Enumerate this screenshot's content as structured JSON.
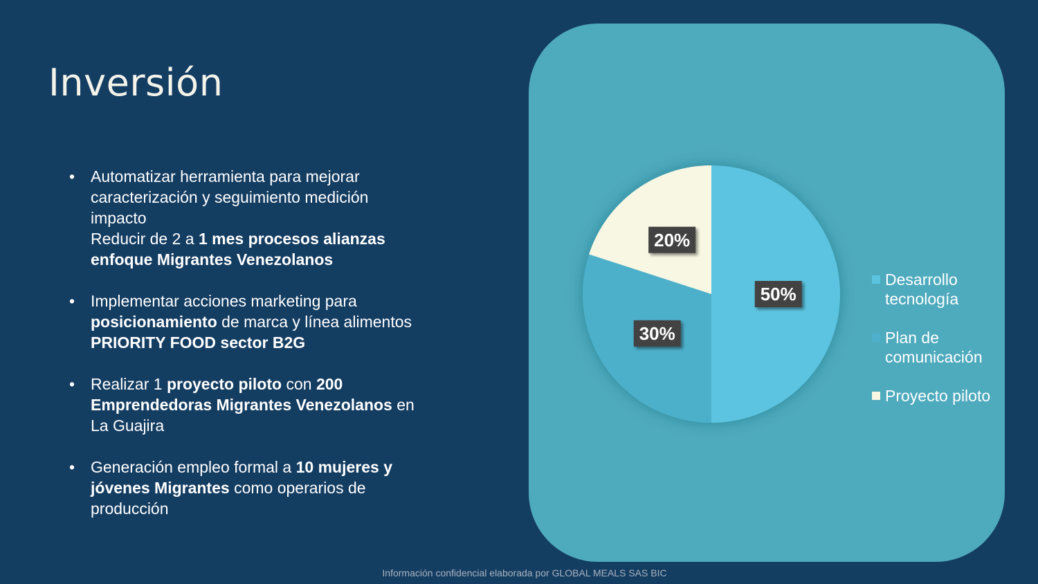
{
  "page": {
    "title": "Inversión",
    "footer": "Información confidencial elaborada por GLOBAL MEALS SAS BIC"
  },
  "bullets": [
    {
      "parts": [
        {
          "text": "Automatizar herramienta para mejorar caracterización y seguimiento medición impacto",
          "bold": false,
          "br_after": true
        },
        {
          "text": "Reducir de 2 a ",
          "bold": false
        },
        {
          "text": "1 mes procesos alianzas enfoque Migrantes Venezolanos",
          "bold": true
        }
      ]
    },
    {
      "parts": [
        {
          "text": "Implementar acciones marketing para ",
          "bold": false
        },
        {
          "text": "posicionamiento",
          "bold": true
        },
        {
          "text": " de marca y línea alimentos ",
          "bold": false
        },
        {
          "text": "PRIORITY FOOD sector B2G",
          "bold": true
        }
      ]
    },
    {
      "parts": [
        {
          "text": "Realizar 1 ",
          "bold": false
        },
        {
          "text": "proyecto piloto",
          "bold": true
        },
        {
          "text": " con ",
          "bold": false
        },
        {
          "text": "200 Emprendedoras Migrantes Venezolanos",
          "bold": true
        },
        {
          "text": " en La Guajira",
          "bold": false
        }
      ]
    },
    {
      "parts": [
        {
          "text": "Generación empleo formal a ",
          "bold": false
        },
        {
          "text": "10 mujeres y jóvenes Migrantes",
          "bold": true
        },
        {
          "text": " como operarios de producción",
          "bold": false
        }
      ]
    }
  ],
  "colors": {
    "background": "#143d62",
    "panel": "#4eaabd",
    "slice_1": "#5bc4e0",
    "slice_2": "#4eb0cb",
    "slice_3": "#f7f7e3",
    "label_bg": "#3a3a3a"
  },
  "chart_data": {
    "type": "pie",
    "labels": [
      "Desarrollo tecnología",
      "Plan de comunicación",
      "Proyecto piloto"
    ],
    "legend_lines": [
      [
        "Desarrollo",
        "tecnología"
      ],
      [
        "Plan de",
        "comunicación"
      ],
      [
        "Proyecto piloto"
      ]
    ],
    "values": [
      50,
      30,
      20
    ],
    "data_labels": [
      "50%",
      "30%",
      "20%"
    ],
    "title": "",
    "legend_position": "right"
  }
}
